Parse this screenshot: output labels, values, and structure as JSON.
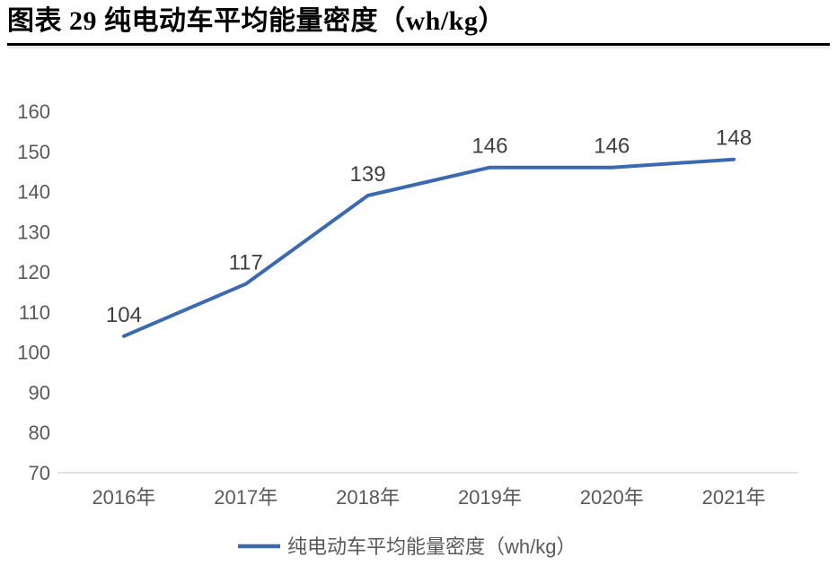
{
  "page": {
    "title": "图表 29 纯电动车平均能量密度（wh/kg）"
  },
  "chart_data": {
    "type": "line",
    "title": "图表 29 纯电动车平均能量密度（wh/kg）",
    "categories": [
      "2016年",
      "2017年",
      "2018年",
      "2019年",
      "2020年",
      "2021年"
    ],
    "series": [
      {
        "name": "纯电动车平均能量密度（wh/kg）",
        "values": [
          104,
          117,
          139,
          146,
          146,
          148
        ]
      }
    ],
    "data_labels": [
      "104",
      "117",
      "139",
      "146",
      "146",
      "148"
    ],
    "xlabel": "",
    "ylabel": "",
    "ylim": [
      70,
      160
    ],
    "yticks": [
      70,
      80,
      90,
      100,
      110,
      120,
      130,
      140,
      150,
      160
    ],
    "grid": false,
    "legend_position": "bottom",
    "colors": {
      "line": "#3C6AB0",
      "axis_line": "#D9D9D9",
      "tick_label": "#595959",
      "data_label": "#404040",
      "legend_text": "#595959",
      "title_text": "#000000"
    }
  }
}
